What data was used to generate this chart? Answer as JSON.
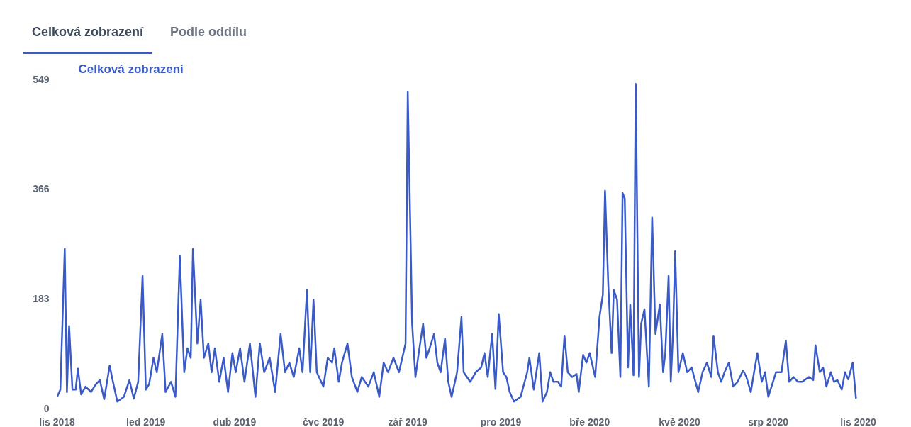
{
  "chart_data": {
    "type": "line",
    "title": "Celková zobrazení",
    "annotations": [
      "Celková zobrazení",
      "Podle oddílu"
    ],
    "x": [
      "2018-11-01",
      "2018-11-04",
      "2018-11-08",
      "2018-11-10",
      "2018-11-12",
      "2018-11-15",
      "2018-11-18",
      "2018-11-20",
      "2018-11-23",
      "2018-11-27",
      "2018-12-02",
      "2018-12-06",
      "2018-12-10",
      "2018-12-14",
      "2018-12-19",
      "2018-12-22",
      "2018-12-26",
      "2019-01-01",
      "2019-01-06",
      "2019-01-10",
      "2019-01-14",
      "2019-01-18",
      "2019-01-21",
      "2019-01-24",
      "2019-01-28",
      "2019-01-31",
      "2019-02-05",
      "2019-02-08",
      "2019-02-13",
      "2019-02-17",
      "2019-02-21",
      "2019-02-25",
      "2019-02-28",
      "2019-03-03",
      "2019-03-05",
      "2019-03-09",
      "2019-03-12",
      "2019-03-15",
      "2019-03-19",
      "2019-03-22",
      "2019-03-25",
      "2019-03-29",
      "2019-04-02",
      "2019-04-06",
      "2019-04-10",
      "2019-04-13",
      "2019-04-17",
      "2019-04-21",
      "2019-04-26",
      "2019-05-01",
      "2019-05-05",
      "2019-05-09",
      "2019-05-14",
      "2019-05-19",
      "2019-05-24",
      "2019-05-28",
      "2019-06-01",
      "2019-06-05",
      "2019-06-10",
      "2019-06-13",
      "2019-06-17",
      "2019-06-20",
      "2019-06-23",
      "2019-06-26",
      "2019-07-02",
      "2019-07-06",
      "2019-07-10",
      "2019-07-12",
      "2019-07-16",
      "2019-07-19",
      "2019-07-24",
      "2019-07-28",
      "2019-08-02",
      "2019-08-06",
      "2019-08-12",
      "2019-08-17",
      "2019-08-22",
      "2019-08-26",
      "2019-08-30",
      "2019-09-04",
      "2019-09-09",
      "2019-09-13",
      "2019-09-15",
      "2019-09-17",
      "2019-09-21",
      "2019-09-24",
      "2019-09-27",
      "2019-10-01",
      "2019-10-04",
      "2019-10-07",
      "2019-10-11",
      "2019-10-14",
      "2019-10-17",
      "2019-10-21",
      "2019-10-24",
      "2019-10-27",
      "2019-11-01",
      "2019-11-05",
      "2019-11-07",
      "2019-11-13",
      "2019-11-18",
      "2019-11-23",
      "2019-11-26",
      "2019-11-29",
      "2019-12-03",
      "2019-12-06",
      "2019-12-09",
      "2019-12-13",
      "2019-12-16",
      "2019-12-19",
      "2019-12-23",
      "2019-12-26",
      "2019-12-29",
      "2020-01-04",
      "2020-01-06",
      "2020-01-10",
      "2020-01-15",
      "2020-01-18",
      "2020-01-22",
      "2020-01-25",
      "2020-01-28",
      "2020-02-01",
      "2020-02-04",
      "2020-02-07",
      "2020-02-10",
      "2020-02-14",
      "2020-02-18",
      "2020-02-20",
      "2020-02-24",
      "2020-02-27",
      "2020-03-01",
      "2020-03-06",
      "2020-03-10",
      "2020-03-13",
      "2020-03-15",
      "2020-03-18",
      "2020-03-21",
      "2020-03-23",
      "2020-03-26",
      "2020-03-29",
      "2020-03-31",
      "2020-04-02",
      "2020-04-05",
      "2020-04-07",
      "2020-04-10",
      "2020-04-12",
      "2020-04-15",
      "2020-04-17",
      "2020-04-20",
      "2020-04-24",
      "2020-04-27",
      "2020-04-30",
      "2020-05-04",
      "2020-05-07",
      "2020-05-09",
      "2020-05-12",
      "2020-05-14",
      "2020-05-16",
      "2020-05-18",
      "2020-05-21",
      "2020-05-25",
      "2020-05-29",
      "2020-06-02",
      "2020-06-08",
      "2020-06-12",
      "2020-06-16",
      "2020-06-20",
      "2020-06-22",
      "2020-06-26",
      "2020-06-29",
      "2020-07-02",
      "2020-07-06",
      "2020-07-10",
      "2020-07-14",
      "2020-07-19",
      "2020-07-22",
      "2020-07-26",
      "2020-07-29",
      "2020-08-01",
      "2020-08-05",
      "2020-08-08",
      "2020-08-11",
      "2020-08-18",
      "2020-08-23",
      "2020-08-27",
      "2020-08-30",
      "2020-09-03",
      "2020-09-07",
      "2020-09-11",
      "2020-09-17",
      "2020-09-21",
      "2020-09-23",
      "2020-09-27",
      "2020-09-30",
      "2020-10-03",
      "2020-10-07",
      "2020-10-10",
      "2020-10-13",
      "2020-10-17",
      "2020-10-20",
      "2020-10-23",
      "2020-10-27",
      "2020-10-30"
    ],
    "series": [
      {
        "color": "#3a5bc7",
        "values": [
          19,
          31,
          266,
          27,
          137,
          31,
          31,
          66,
          23,
          36,
          27,
          39,
          47,
          15,
          71,
          44,
          11,
          19,
          47,
          16,
          44,
          221,
          31,
          40,
          84,
          60,
          124,
          27,
          44,
          19,
          254,
          60,
          100,
          84,
          266,
          108,
          181,
          84,
          108,
          60,
          100,
          44,
          84,
          27,
          92,
          60,
          100,
          44,
          108,
          19,
          108,
          60,
          84,
          27,
          124,
          60,
          76,
          52,
          100,
          60,
          197,
          60,
          181,
          60,
          36,
          84,
          76,
          100,
          44,
          76,
          108,
          52,
          27,
          52,
          36,
          60,
          19,
          76,
          60,
          84,
          60,
          92,
          108,
          528,
          141,
          52,
          92,
          141,
          84,
          100,
          124,
          76,
          60,
          116,
          44,
          19,
          60,
          152,
          60,
          44,
          60,
          68,
          92,
          52,
          124,
          32,
          157,
          60,
          52,
          27,
          11,
          15,
          19,
          60,
          84,
          31,
          92,
          11,
          27,
          60,
          44,
          44,
          36,
          121,
          60,
          52,
          57,
          27,
          89,
          76,
          92,
          52,
          153,
          189,
          363,
          205,
          92,
          197,
          181,
          52,
          359,
          350,
          68,
          173,
          55,
          541,
          52,
          141,
          165,
          36,
          318,
          124,
          173,
          60,
          92,
          221,
          44,
          124,
          262,
          60,
          92,
          60,
          68,
          27,
          60,
          76,
          52,
          121,
          60,
          44,
          60,
          76,
          36,
          44,
          63,
          52,
          27,
          60,
          92,
          44,
          60,
          19,
          60,
          60,
          113,
          44,
          52,
          44,
          44,
          52,
          47,
          105,
          60,
          68,
          36,
          60,
          44,
          47,
          31,
          60,
          48,
          76,
          16
        ]
      }
    ],
    "xlim": [
      "2018-11-01",
      "2020-11-01"
    ],
    "xticks": [
      {
        "value": "2018-11-01",
        "label": "lis 2018"
      },
      {
        "value": "2019-01-21",
        "label": "led 2019"
      },
      {
        "value": "2019-04-12",
        "label": "dub 2019"
      },
      {
        "value": "2019-07-02",
        "label": "čvc 2019"
      },
      {
        "value": "2019-09-17",
        "label": "zář 2019"
      },
      {
        "value": "2019-12-11",
        "label": "pro 2019"
      },
      {
        "value": "2020-03-01",
        "label": "bře 2020"
      },
      {
        "value": "2020-05-22",
        "label": "kvě 2020"
      },
      {
        "value": "2020-08-11",
        "label": "srp 2020"
      },
      {
        "value": "2020-11-01",
        "label": "lis 2020"
      }
    ],
    "ylim": [
      0,
      549
    ],
    "yticks": [
      0,
      183,
      366,
      549
    ],
    "grid": false
  }
}
